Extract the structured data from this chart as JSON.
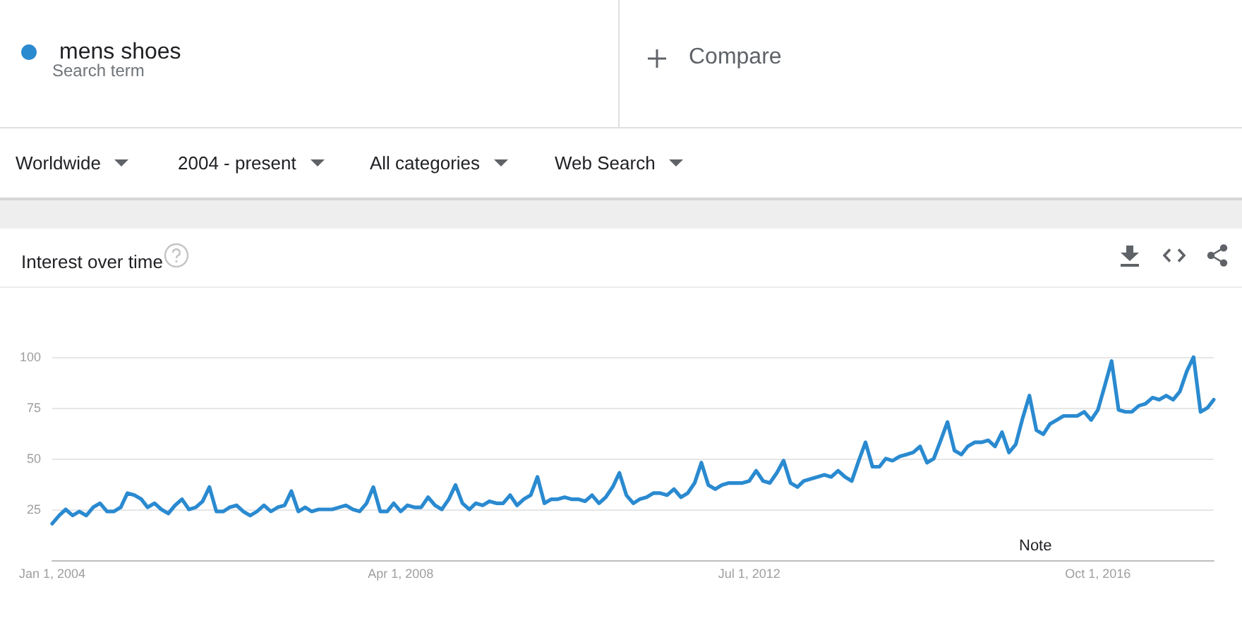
{
  "chart_data": {
    "type": "line",
    "title": "Interest over time",
    "x": [
      "2004-01",
      "2004-02",
      "2004-03",
      "2004-04",
      "2004-05",
      "2004-06",
      "2004-07",
      "2004-08",
      "2004-09",
      "2004-10",
      "2004-11",
      "2004-12",
      "2005-01",
      "2005-02",
      "2005-03",
      "2005-04",
      "2005-05",
      "2005-06",
      "2005-07",
      "2005-08",
      "2005-09",
      "2005-10",
      "2005-11",
      "2005-12",
      "2006-01",
      "2006-02",
      "2006-03",
      "2006-04",
      "2006-05",
      "2006-06",
      "2006-07",
      "2006-08",
      "2006-09",
      "2006-10",
      "2006-11",
      "2006-12",
      "2007-01",
      "2007-02",
      "2007-03",
      "2007-04",
      "2007-05",
      "2007-06",
      "2007-07",
      "2007-08",
      "2007-09",
      "2007-10",
      "2007-11",
      "2007-12",
      "2008-01",
      "2008-02",
      "2008-03",
      "2008-04",
      "2008-05",
      "2008-06",
      "2008-07",
      "2008-08",
      "2008-09",
      "2008-10",
      "2008-11",
      "2008-12",
      "2009-01",
      "2009-02",
      "2009-03",
      "2009-04",
      "2009-05",
      "2009-06",
      "2009-07",
      "2009-08",
      "2009-09",
      "2009-10",
      "2009-11",
      "2009-12",
      "2010-01",
      "2010-02",
      "2010-03",
      "2010-04",
      "2010-05",
      "2010-06",
      "2010-07",
      "2010-08",
      "2010-09",
      "2010-10",
      "2010-11",
      "2010-12",
      "2011-01",
      "2011-02",
      "2011-03",
      "2011-04",
      "2011-05",
      "2011-06",
      "2011-07",
      "2011-08",
      "2011-09",
      "2011-10",
      "2011-11",
      "2011-12",
      "2012-01",
      "2012-02",
      "2012-03",
      "2012-04",
      "2012-05",
      "2012-06",
      "2012-07",
      "2012-08",
      "2012-09",
      "2012-10",
      "2012-11",
      "2012-12",
      "2013-01",
      "2013-02",
      "2013-03",
      "2013-04",
      "2013-05",
      "2013-06",
      "2013-07",
      "2013-08",
      "2013-09",
      "2013-10",
      "2013-11",
      "2013-12",
      "2014-01",
      "2014-02",
      "2014-03",
      "2014-04",
      "2014-05",
      "2014-06",
      "2014-07",
      "2014-08",
      "2014-09",
      "2014-10",
      "2014-11",
      "2014-12",
      "2015-01",
      "2015-02",
      "2015-03",
      "2015-04",
      "2015-05",
      "2015-06",
      "2015-07",
      "2015-08",
      "2015-09",
      "2015-10",
      "2015-11",
      "2015-12",
      "2016-01",
      "2016-02",
      "2016-03",
      "2016-04",
      "2016-05",
      "2016-06",
      "2016-07",
      "2016-08",
      "2016-09",
      "2016-10",
      "2016-11",
      "2016-12",
      "2017-01",
      "2017-02",
      "2017-03",
      "2017-04",
      "2017-05",
      "2017-06",
      "2017-07",
      "2017-08",
      "2017-09",
      "2017-10",
      "2017-11",
      "2017-12",
      "2018-01",
      "2018-02",
      "2018-03"
    ],
    "series": [
      {
        "name": "mens shoes",
        "color": "#2a8ad0",
        "values": [
          18,
          22,
          25,
          22,
          24,
          22,
          26,
          28,
          24,
          24,
          26,
          33,
          32,
          30,
          26,
          28,
          25,
          23,
          27,
          30,
          25,
          26,
          29,
          36,
          24,
          24,
          26,
          27,
          24,
          22,
          24,
          27,
          24,
          26,
          27,
          34,
          24,
          26,
          24,
          25,
          25,
          25,
          26,
          27,
          25,
          24,
          28,
          36,
          24,
          24,
          28,
          24,
          27,
          26,
          26,
          31,
          27,
          25,
          30,
          37,
          28,
          25,
          28,
          27,
          29,
          28,
          28,
          32,
          27,
          30,
          32,
          41,
          28,
          30,
          30,
          31,
          30,
          30,
          29,
          32,
          28,
          31,
          36,
          43,
          32,
          28,
          30,
          31,
          33,
          33,
          32,
          35,
          31,
          33,
          38,
          48,
          37,
          35,
          37,
          38,
          38,
          38,
          39,
          44,
          39,
          38,
          43,
          49,
          38,
          36,
          39,
          40,
          41,
          42,
          41,
          44,
          41,
          39,
          49,
          58,
          46,
          46,
          50,
          49,
          51,
          52,
          53,
          56,
          48,
          50,
          59,
          68,
          54,
          52,
          56,
          58,
          58,
          59,
          56,
          63,
          53,
          57,
          70,
          81,
          64,
          62,
          67,
          69,
          71,
          71,
          71,
          73,
          69,
          74,
          86,
          98,
          74,
          73,
          73,
          76,
          77,
          80,
          79,
          81,
          79,
          83,
          93,
          100,
          73,
          75,
          79
        ]
      }
    ],
    "xlim": [
      "2004-01",
      "2018-03"
    ],
    "xticks": [
      {
        "value": "2004-01-01",
        "label": "Jan 1, 2004"
      },
      {
        "value": "2008-04-01",
        "label": "Apr 1, 2008"
      },
      {
        "value": "2012-07-01",
        "label": "Jul 1, 2012"
      },
      {
        "value": "2016-10-01",
        "label": "Oct 1, 2016"
      }
    ],
    "ylim": [
      0,
      100
    ],
    "yticks": [
      25,
      50,
      75,
      100
    ],
    "grid": "y",
    "legend": "top left",
    "line_style": "solid",
    "annotations": [
      "Search term",
      "Compare",
      "Worldwide",
      "2004 - present",
      "All categories",
      "Web Search",
      "Note"
    ]
  }
}
